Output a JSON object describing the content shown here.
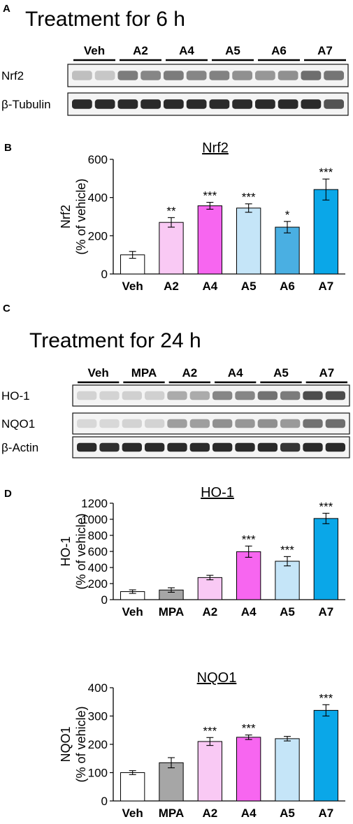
{
  "panel_a": {
    "letter": "A",
    "heading": "Treatment for 6 h",
    "lanes": [
      "Veh",
      "A2",
      "A4",
      "A5",
      "A6",
      "A7"
    ],
    "rows": [
      {
        "label": "Nrf2",
        "intensities": [
          0.22,
          0.18,
          0.55,
          0.5,
          0.55,
          0.5,
          0.52,
          0.45,
          0.42,
          0.45,
          0.62,
          0.58
        ]
      },
      {
        "label": "β-Tubulin",
        "intensities": [
          0.95,
          0.95,
          0.95,
          0.95,
          0.95,
          0.95,
          0.95,
          0.95,
          0.95,
          0.95,
          0.95,
          0.75
        ]
      }
    ]
  },
  "panel_c": {
    "letter": "C",
    "heading": "Treatment for 24 h",
    "lanes": [
      "Veh",
      "MPA",
      "A2",
      "A4",
      "A5",
      "A7"
    ],
    "rows": [
      {
        "label": "HO-1",
        "intensities": [
          0.12,
          0.12,
          0.14,
          0.14,
          0.32,
          0.32,
          0.5,
          0.5,
          0.6,
          0.55,
          0.78,
          0.78
        ]
      },
      {
        "label": "NQO1",
        "intensities": [
          0.1,
          0.1,
          0.12,
          0.12,
          0.38,
          0.38,
          0.45,
          0.42,
          0.45,
          0.4,
          0.6,
          0.62
        ]
      },
      {
        "label": "β-Actin",
        "intensities": [
          0.95,
          0.92,
          0.95,
          0.95,
          0.95,
          0.95,
          0.95,
          0.95,
          0.95,
          0.9,
          0.95,
          0.95
        ]
      }
    ]
  },
  "chart_data": [
    {
      "panel": "B",
      "type": "bar",
      "title": "Nrf2",
      "ylabel": [
        "Nrf2",
        "(% of vehicle)"
      ],
      "categories": [
        "Veh",
        "A2",
        "A4",
        "A5",
        "A6",
        "A7"
      ],
      "values": [
        100,
        270,
        357,
        345,
        245,
        442
      ],
      "errors": [
        18,
        25,
        18,
        22,
        30,
        55
      ],
      "significance": [
        "",
        "**",
        "***",
        "***",
        "*",
        "***"
      ],
      "colors": [
        "#ffffff",
        "#f9c9f4",
        "#f766f0",
        "#c5e5f8",
        "#4aafe2",
        "#0aa7e8"
      ],
      "ylim": [
        0,
        600
      ],
      "yticks": [
        0,
        200,
        400,
        600
      ]
    },
    {
      "panel": "D",
      "type": "bar",
      "title": "HO-1",
      "ylabel": [
        "HO-1",
        "(% of vehicle)"
      ],
      "categories": [
        "Veh",
        "MPA",
        "A2",
        "A4",
        "A5",
        "A7"
      ],
      "values": [
        100,
        120,
        275,
        597,
        478,
        1010
      ],
      "errors": [
        22,
        28,
        28,
        70,
        58,
        65
      ],
      "significance": [
        "",
        "",
        "",
        "***",
        "***",
        "***"
      ],
      "colors": [
        "#ffffff",
        "#a6a6a6",
        "#f9c9f4",
        "#f766f0",
        "#c5e5f8",
        "#0aa7e8"
      ],
      "ylim": [
        0,
        1200
      ],
      "yticks": [
        0,
        200,
        400,
        600,
        800,
        1000,
        1200
      ]
    },
    {
      "panel": "D",
      "type": "bar",
      "title": "NQO1",
      "ylabel": [
        "NQO1",
        "(% of vehicle)"
      ],
      "categories": [
        "Veh",
        "MPA",
        "A2",
        "A4",
        "A5",
        "A7"
      ],
      "values": [
        100,
        135,
        210,
        225,
        220,
        320
      ],
      "errors": [
        7,
        18,
        14,
        8,
        8,
        20
      ],
      "significance": [
        "",
        "",
        "***",
        "***",
        "",
        "***"
      ],
      "colors": [
        "#ffffff",
        "#a6a6a6",
        "#f9c9f4",
        "#f766f0",
        "#c5e5f8",
        "#0aa7e8"
      ],
      "ylim": [
        0,
        400
      ],
      "yticks": [
        0,
        100,
        200,
        300,
        400
      ]
    }
  ]
}
